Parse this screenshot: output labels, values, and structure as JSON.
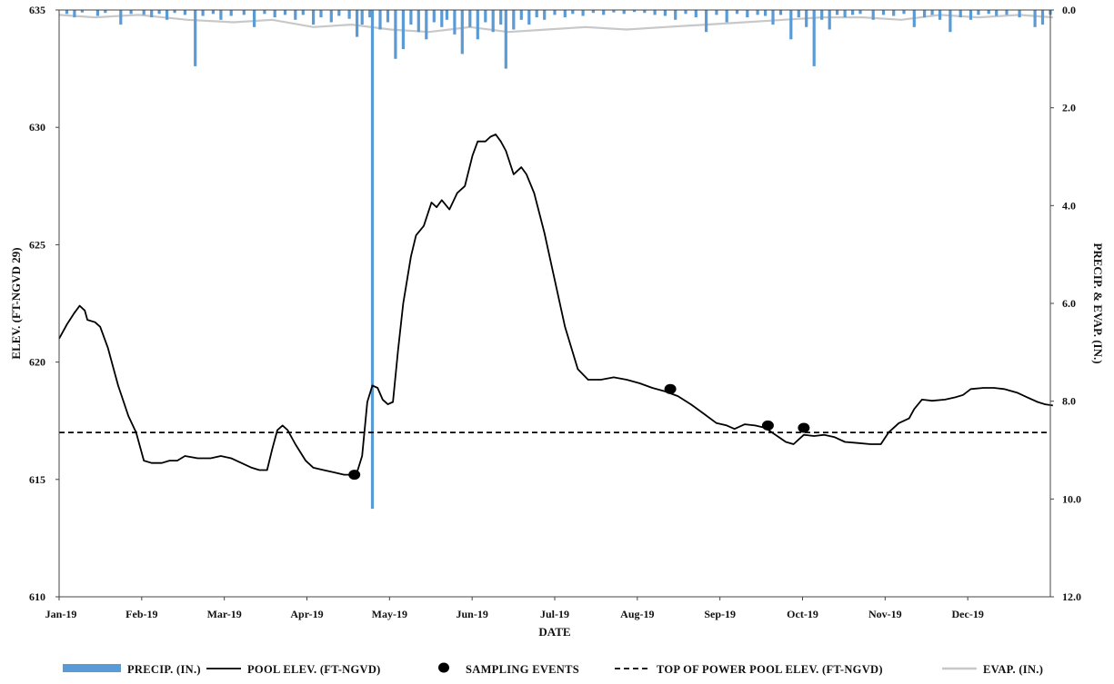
{
  "chart_data": {
    "type": "line",
    "xlabel": "DATE",
    "ylabel_left": "ELEV.  (FT-NGVD  29)",
    "ylabel_right": "PRECIP.  & EVAP.  (IN.)",
    "x_categories": [
      "Jan-19",
      "Feb-19",
      "Mar-19",
      "Apr-19",
      "May-19",
      "Jun-19",
      "Jul-19",
      "Aug-19",
      "Sep-19",
      "Oct-19",
      "Nov-19",
      "Dec-19"
    ],
    "ylim_left": [
      610,
      635
    ],
    "yticks_left": [
      "610",
      "615",
      "620",
      "625",
      "630",
      "635"
    ],
    "ylim_right": [
      0.0,
      12.0
    ],
    "right_axis_inverted": true,
    "yticks_right": [
      "0.0",
      "2.0",
      "4.0",
      "6.0",
      "8.0",
      "10.0",
      "12.0"
    ],
    "grid": false,
    "series": [
      {
        "name": "POOL ELEV. (FT-NGVD)",
        "color": "#000000",
        "points": [
          [
            "2019-01-01",
            621.0
          ],
          [
            "2019-01-04",
            621.6
          ],
          [
            "2019-01-07",
            622.1
          ],
          [
            "2019-01-09",
            622.4
          ],
          [
            "2019-01-11",
            622.2
          ],
          [
            "2019-01-12",
            621.8
          ],
          [
            "2019-01-15",
            621.7
          ],
          [
            "2019-01-17",
            621.5
          ],
          [
            "2019-01-20",
            620.6
          ],
          [
            "2019-01-24",
            619.0
          ],
          [
            "2019-01-28",
            617.7
          ],
          [
            "2019-01-31",
            617.0
          ],
          [
            "2019-02-03",
            615.8
          ],
          [
            "2019-02-06",
            615.7
          ],
          [
            "2019-02-10",
            615.7
          ],
          [
            "2019-02-13",
            615.8
          ],
          [
            "2019-02-16",
            615.8
          ],
          [
            "2019-02-19",
            616.0
          ],
          [
            "2019-02-24",
            615.9
          ],
          [
            "2019-03-01",
            615.9
          ],
          [
            "2019-03-05",
            616.0
          ],
          [
            "2019-03-09",
            615.9
          ],
          [
            "2019-03-13",
            615.7
          ],
          [
            "2019-03-17",
            615.5
          ],
          [
            "2019-03-20",
            615.4
          ],
          [
            "2019-03-23",
            615.4
          ],
          [
            "2019-03-25",
            616.3
          ],
          [
            "2019-03-27",
            617.1
          ],
          [
            "2019-03-29",
            617.3
          ],
          [
            "2019-03-31",
            617.1
          ],
          [
            "2019-04-03",
            616.5
          ],
          [
            "2019-04-07",
            615.8
          ],
          [
            "2019-04-10",
            615.5
          ],
          [
            "2019-04-14",
            615.4
          ],
          [
            "2019-04-18",
            615.3
          ],
          [
            "2019-04-22",
            615.2
          ],
          [
            "2019-04-25",
            615.2
          ],
          [
            "2019-04-27",
            615.3
          ],
          [
            "2019-04-29",
            616.0
          ],
          [
            "2019-05-01",
            618.3
          ],
          [
            "2019-05-03",
            619.0
          ],
          [
            "2019-05-05",
            618.9
          ],
          [
            "2019-05-07",
            618.4
          ],
          [
            "2019-05-09",
            618.2
          ],
          [
            "2019-05-11",
            618.3
          ],
          [
            "2019-05-13",
            620.5
          ],
          [
            "2019-05-15",
            622.5
          ],
          [
            "2019-05-18",
            624.5
          ],
          [
            "2019-05-20",
            625.4
          ],
          [
            "2019-05-23",
            625.8
          ],
          [
            "2019-05-26",
            626.8
          ],
          [
            "2019-05-28",
            626.6
          ],
          [
            "2019-05-30",
            626.9
          ],
          [
            "2019-06-02",
            626.5
          ],
          [
            "2019-06-05",
            627.2
          ],
          [
            "2019-06-08",
            627.5
          ],
          [
            "2019-06-11",
            628.8
          ],
          [
            "2019-06-13",
            629.4
          ],
          [
            "2019-06-16",
            629.4
          ],
          [
            "2019-06-18",
            629.6
          ],
          [
            "2019-06-20",
            629.7
          ],
          [
            "2019-06-22",
            629.4
          ],
          [
            "2019-06-24",
            629.0
          ],
          [
            "2019-06-27",
            628.0
          ],
          [
            "2019-06-30",
            628.3
          ],
          [
            "2019-07-02",
            628.0
          ],
          [
            "2019-07-05",
            627.2
          ],
          [
            "2019-07-09",
            625.5
          ],
          [
            "2019-07-13",
            623.5
          ],
          [
            "2019-07-17",
            621.5
          ],
          [
            "2019-07-22",
            619.7
          ],
          [
            "2019-07-26",
            619.25
          ],
          [
            "2019-07-31",
            619.25
          ],
          [
            "2019-08-05",
            619.35
          ],
          [
            "2019-08-10",
            619.25
          ],
          [
            "2019-08-15",
            619.1
          ],
          [
            "2019-08-20",
            618.9
          ],
          [
            "2019-08-25",
            618.75
          ],
          [
            "2019-08-30",
            618.55
          ],
          [
            "2019-09-04",
            618.2
          ],
          [
            "2019-09-09",
            617.8
          ],
          [
            "2019-09-14",
            617.4
          ],
          [
            "2019-09-18",
            617.3
          ],
          [
            "2019-09-21",
            617.15
          ],
          [
            "2019-09-25",
            617.35
          ],
          [
            "2019-09-29",
            617.3
          ],
          [
            "2019-10-03",
            617.2
          ],
          [
            "2019-10-07",
            616.9
          ],
          [
            "2019-10-11",
            616.6
          ],
          [
            "2019-10-14",
            616.5
          ],
          [
            "2019-10-18",
            616.9
          ],
          [
            "2019-10-22",
            616.85
          ],
          [
            "2019-10-26",
            616.9
          ],
          [
            "2019-10-30",
            616.8
          ],
          [
            "2019-11-03",
            616.6
          ],
          [
            "2019-11-08",
            616.55
          ],
          [
            "2019-11-13",
            616.5
          ],
          [
            "2019-11-17",
            616.5
          ],
          [
            "2019-11-20",
            617.0
          ],
          [
            "2019-11-24",
            617.4
          ],
          [
            "2019-11-28",
            617.6
          ],
          [
            "2019-11-30",
            618.0
          ],
          [
            "2019-12-03",
            618.4
          ],
          [
            "2019-12-07",
            618.35
          ],
          [
            "2019-12-12",
            618.4
          ],
          [
            "2019-12-16",
            618.5
          ],
          [
            "2019-12-19",
            618.6
          ],
          [
            "2019-12-22",
            618.85
          ],
          [
            "2019-12-27",
            618.9
          ],
          [
            "2019-12-31",
            618.9
          ],
          [
            "2020-01-04",
            618.85
          ],
          [
            "2020-01-09",
            618.7
          ],
          [
            "2020-01-13",
            618.5
          ],
          [
            "2020-01-17",
            618.3
          ],
          [
            "2020-01-20",
            618.2
          ],
          [
            "2020-01-23",
            618.15
          ]
        ]
      },
      {
        "name": "TOP OF POWER POOL ELEV. (FT-NGVD)",
        "color": "#000000",
        "dashed": true,
        "value": 617.0
      },
      {
        "name": "SAMPLING EVENTS",
        "color": "#000000",
        "marker": "circle",
        "points": [
          [
            "2019-04-26",
            615.2
          ],
          [
            "2019-08-27",
            618.85
          ],
          [
            "2019-10-04",
            617.3
          ],
          [
            "2019-10-18",
            617.2
          ]
        ]
      },
      {
        "name": "PRECIP. (IN.)",
        "color": "#5a9bd5",
        "axis": "right",
        "type": "bar",
        "values": [
          [
            "2019-01-04",
            0.08
          ],
          [
            "2019-01-07",
            0.15
          ],
          [
            "2019-01-10",
            0.05
          ],
          [
            "2019-01-16",
            0.12
          ],
          [
            "2019-01-19",
            0.06
          ],
          [
            "2019-01-25",
            0.3
          ],
          [
            "2019-01-29",
            0.08
          ],
          [
            "2019-02-03",
            0.1
          ],
          [
            "2019-02-06",
            0.15
          ],
          [
            "2019-02-09",
            0.08
          ],
          [
            "2019-02-12",
            0.2
          ],
          [
            "2019-02-15",
            0.06
          ],
          [
            "2019-02-19",
            0.1
          ],
          [
            "2019-02-23",
            1.15
          ],
          [
            "2019-02-26",
            0.12
          ],
          [
            "2019-03-02",
            0.08
          ],
          [
            "2019-03-05",
            0.2
          ],
          [
            "2019-03-09",
            0.12
          ],
          [
            "2019-03-14",
            0.1
          ],
          [
            "2019-03-18",
            0.35
          ],
          [
            "2019-03-22",
            0.08
          ],
          [
            "2019-03-26",
            0.15
          ],
          [
            "2019-03-30",
            0.1
          ],
          [
            "2019-04-03",
            0.2
          ],
          [
            "2019-04-06",
            0.1
          ],
          [
            "2019-04-10",
            0.3
          ],
          [
            "2019-04-13",
            0.15
          ],
          [
            "2019-04-17",
            0.25
          ],
          [
            "2019-04-20",
            0.12
          ],
          [
            "2019-04-24",
            0.18
          ],
          [
            "2019-04-27",
            0.55
          ],
          [
            "2019-04-29",
            0.3
          ],
          [
            "2019-05-02",
            0.15
          ],
          [
            "2019-05-06",
            0.4
          ],
          [
            "2019-05-09",
            0.25
          ],
          [
            "2019-05-12",
            1.0
          ],
          [
            "2019-05-15",
            0.8
          ],
          [
            "2019-05-18",
            0.3
          ],
          [
            "2019-05-21",
            0.45
          ],
          [
            "2019-05-24",
            0.6
          ],
          [
            "2019-05-27",
            0.25
          ],
          [
            "2019-05-30",
            0.35
          ],
          [
            "2019-06-01",
            0.2
          ],
          [
            "2019-06-04",
            0.5
          ],
          [
            "2019-06-07",
            0.9
          ],
          [
            "2019-06-10",
            0.35
          ],
          [
            "2019-06-13",
            0.6
          ],
          [
            "2019-06-16",
            0.25
          ],
          [
            "2019-06-19",
            0.45
          ],
          [
            "2019-06-22",
            0.3
          ],
          [
            "2019-06-24",
            1.2
          ],
          [
            "2019-06-27",
            0.4
          ],
          [
            "2019-06-30",
            0.2
          ],
          [
            "2019-07-03",
            0.3
          ],
          [
            "2019-07-06",
            0.15
          ],
          [
            "2019-07-09",
            0.2
          ],
          [
            "2019-07-13",
            0.1
          ],
          [
            "2019-07-17",
            0.15
          ],
          [
            "2019-07-20",
            0.08
          ],
          [
            "2019-07-24",
            0.12
          ],
          [
            "2019-07-28",
            0.06
          ],
          [
            "2019-08-01",
            0.1
          ],
          [
            "2019-08-05",
            0.05
          ],
          [
            "2019-08-09",
            0.08
          ],
          [
            "2019-08-13",
            0.04
          ],
          [
            "2019-08-17",
            0.06
          ],
          [
            "2019-08-21",
            0.1
          ],
          [
            "2019-08-25",
            0.12
          ],
          [
            "2019-08-29",
            0.2
          ],
          [
            "2019-09-02",
            0.08
          ],
          [
            "2019-09-06",
            0.15
          ],
          [
            "2019-09-10",
            0.45
          ],
          [
            "2019-09-14",
            0.1
          ],
          [
            "2019-09-18",
            0.25
          ],
          [
            "2019-09-22",
            0.08
          ],
          [
            "2019-09-26",
            0.15
          ],
          [
            "2019-09-30",
            0.1
          ],
          [
            "2019-10-03",
            0.12
          ],
          [
            "2019-10-06",
            0.3
          ],
          [
            "2019-10-09",
            0.1
          ],
          [
            "2019-10-13",
            0.6
          ],
          [
            "2019-10-16",
            0.15
          ],
          [
            "2019-10-19",
            0.35
          ],
          [
            "2019-10-22",
            1.15
          ],
          [
            "2019-10-25",
            0.2
          ],
          [
            "2019-10-28",
            0.4
          ],
          [
            "2019-10-31",
            0.1
          ],
          [
            "2019-11-03",
            0.15
          ],
          [
            "2019-11-06",
            0.1
          ],
          [
            "2019-11-09",
            0.08
          ],
          [
            "2019-11-14",
            0.2
          ],
          [
            "2019-11-18",
            0.1
          ],
          [
            "2019-11-22",
            0.12
          ],
          [
            "2019-11-26",
            0.08
          ],
          [
            "2019-11-30",
            0.35
          ],
          [
            "2019-12-04",
            0.15
          ],
          [
            "2019-12-07",
            0.1
          ],
          [
            "2019-12-10",
            0.2
          ],
          [
            "2019-12-14",
            0.45
          ],
          [
            "2019-12-18",
            0.15
          ],
          [
            "2019-12-22",
            0.2
          ],
          [
            "2019-12-25",
            0.1
          ],
          [
            "2019-12-29",
            0.08
          ],
          [
            "2020-01-01",
            0.12
          ],
          [
            "2020-01-05",
            0.1
          ],
          [
            "2020-01-10",
            0.15
          ],
          [
            "2020-01-16",
            0.35
          ],
          [
            "2020-01-19",
            0.3
          ],
          [
            "2020-01-22",
            0.1
          ],
          [
            "2019-05-03",
            10.2
          ]
        ]
      },
      {
        "name": "EVAP. (IN.)",
        "color": "#c8c8c8",
        "axis": "right",
        "points": [
          [
            "2019-01-01",
            0.1
          ],
          [
            "2019-01-15",
            0.15
          ],
          [
            "2019-02-01",
            0.1
          ],
          [
            "2019-02-20",
            0.2
          ],
          [
            "2019-03-10",
            0.25
          ],
          [
            "2019-03-25",
            0.2
          ],
          [
            "2019-04-10",
            0.35
          ],
          [
            "2019-04-25",
            0.3
          ],
          [
            "2019-05-10",
            0.4
          ],
          [
            "2019-05-25",
            0.45
          ],
          [
            "2019-06-10",
            0.35
          ],
          [
            "2019-06-25",
            0.45
          ],
          [
            "2019-07-10",
            0.4
          ],
          [
            "2019-07-25",
            0.35
          ],
          [
            "2019-08-10",
            0.4
          ],
          [
            "2019-08-25",
            0.35
          ],
          [
            "2019-09-10",
            0.3
          ],
          [
            "2019-09-25",
            0.25
          ],
          [
            "2019-10-10",
            0.2
          ],
          [
            "2019-10-25",
            0.15
          ],
          [
            "2019-11-10",
            0.15
          ],
          [
            "2019-11-25",
            0.2
          ],
          [
            "2019-12-10",
            0.1
          ],
          [
            "2019-12-25",
            0.15
          ],
          [
            "2020-01-10",
            0.1
          ],
          [
            "2020-01-23",
            0.15
          ]
        ]
      }
    ],
    "legend": {
      "position": "bottom",
      "items": [
        {
          "label": "PRECIP. (IN.)",
          "kind": "bar",
          "color": "#5a9bd5"
        },
        {
          "label": "POOL ELEV. (FT-NGVD)",
          "kind": "line",
          "color": "#000000"
        },
        {
          "label": "SAMPLING EVENTS",
          "kind": "dot",
          "color": "#000000"
        },
        {
          "label": "TOP OF POWER POOL ELEV. (FT-NGVD)",
          "kind": "dash",
          "color": "#000000"
        },
        {
          "label": "EVAP. (IN.)",
          "kind": "line",
          "color": "#c8c8c8"
        }
      ]
    }
  }
}
